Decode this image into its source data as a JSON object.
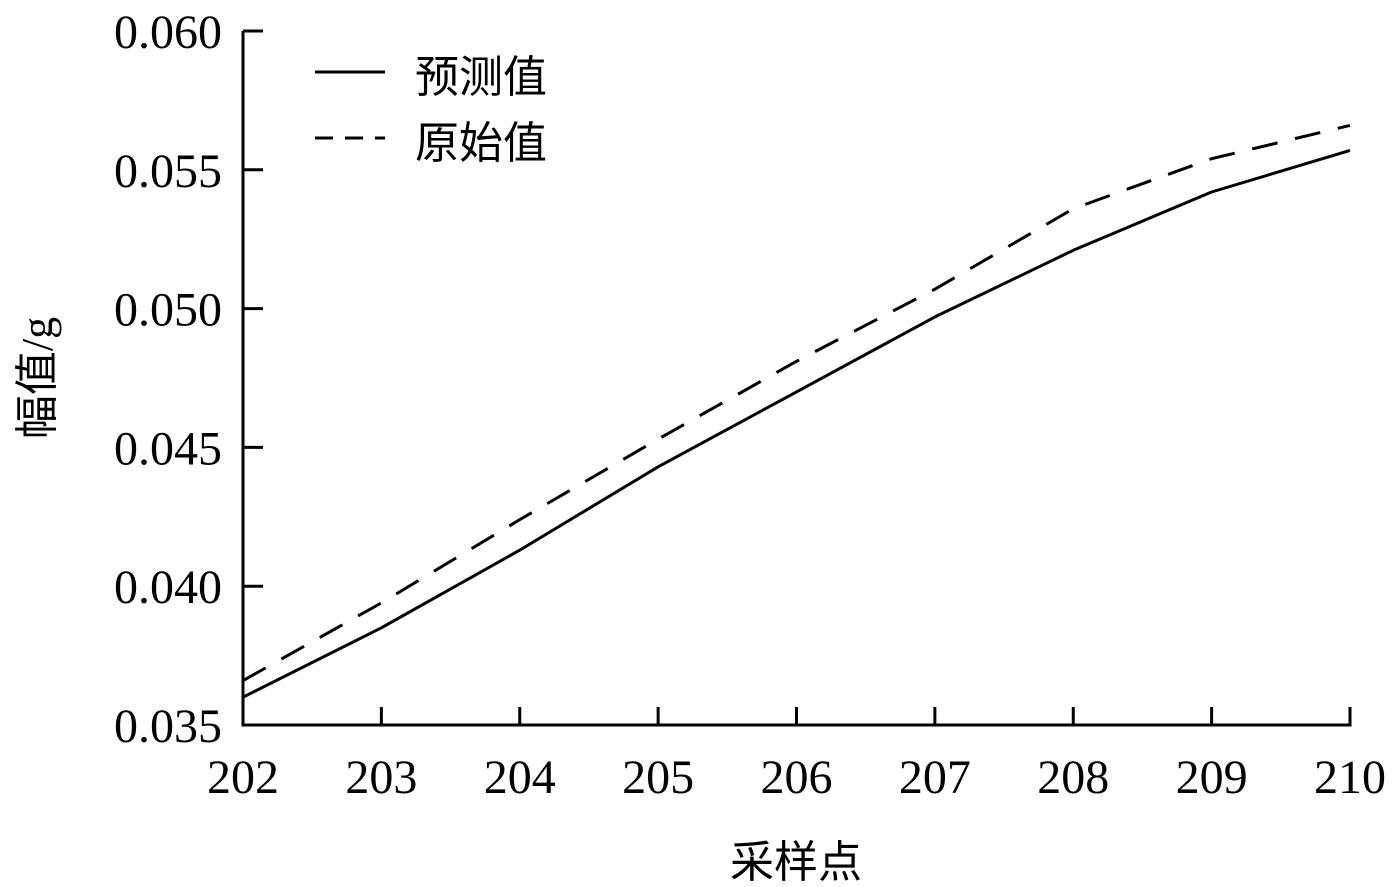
{
  "chart_data": {
    "type": "line",
    "title": "",
    "xlabel": "采样点",
    "ylabel": "幅值/g",
    "x": [
      202,
      203,
      204,
      205,
      206,
      207,
      208,
      209,
      210
    ],
    "xticks": [
      "202",
      "203",
      "204",
      "205",
      "206",
      "207",
      "208",
      "209",
      "210"
    ],
    "yticks": [
      "0.035",
      "0.040",
      "0.045",
      "0.050",
      "0.055",
      "0.060"
    ],
    "xlim": [
      202,
      210
    ],
    "ylim": [
      0.035,
      0.06
    ],
    "grid": false,
    "legend_position": "upper left",
    "series": [
      {
        "name": "预测值",
        "style": "solid",
        "values": [
          0.036,
          0.0385,
          0.0413,
          0.0443,
          0.047,
          0.0497,
          0.0521,
          0.0542,
          0.0557
        ]
      },
      {
        "name": "原始值",
        "style": "dashed",
        "values": [
          0.0366,
          0.0394,
          0.0424,
          0.0453,
          0.0481,
          0.0507,
          0.0536,
          0.0554,
          0.0566
        ]
      }
    ]
  },
  "legend": {
    "solid_label": "预测值",
    "dashed_label": "原始值"
  },
  "axes": {
    "xlabel": "采样点",
    "ylabel": "幅值/g"
  }
}
